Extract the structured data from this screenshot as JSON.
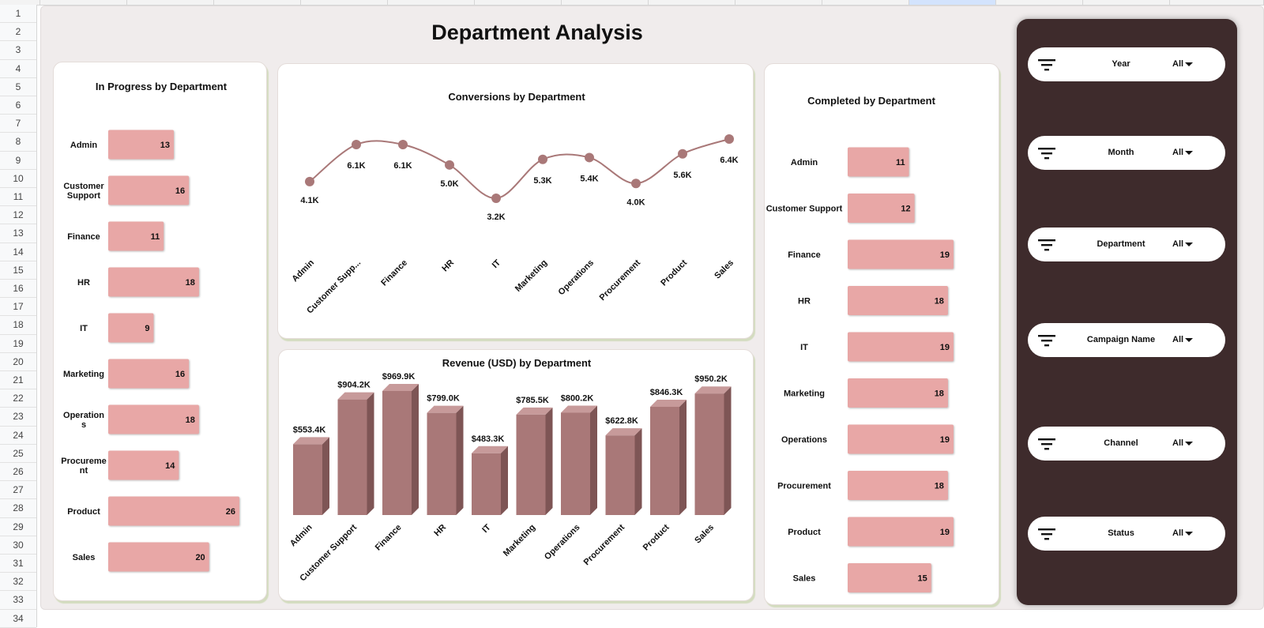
{
  "dashboard": {
    "title": "Department Analysis"
  },
  "sheet": {
    "rows": [
      "1",
      "2",
      "3",
      "4",
      "5",
      "6",
      "7",
      "8",
      "9",
      "10",
      "11",
      "12",
      "13",
      "14",
      "15",
      "16",
      "17",
      "18",
      "19",
      "20",
      "21",
      "22",
      "23",
      "24",
      "25",
      "26",
      "27",
      "28",
      "29",
      "30",
      "31",
      "32",
      "33",
      "34"
    ]
  },
  "filters": [
    {
      "label": "Year",
      "value": "All"
    },
    {
      "label": "Month",
      "value": "All"
    },
    {
      "label": "Department",
      "value": "All"
    },
    {
      "label": "Campaign Name",
      "value": "All"
    },
    {
      "label": "Channel",
      "value": "All"
    },
    {
      "label": "Status",
      "value": "All"
    }
  ],
  "colors": {
    "bar": "#e8a7a6",
    "column_front": "#a97878",
    "column_top": "#c79a9a",
    "column_side": "#7e5555",
    "line": "#a97878",
    "sidebar": "#3e2b2c"
  },
  "chart_data": [
    {
      "id": "in_progress",
      "type": "bar",
      "orientation": "horizontal",
      "title": "In Progress by Department",
      "categories": [
        "Admin",
        "Customer Support",
        "Finance",
        "HR",
        "IT",
        "Marketing",
        "Operations",
        "Procurement",
        "Product",
        "Sales"
      ],
      "values": [
        13,
        16,
        11,
        18,
        9,
        16,
        18,
        14,
        26,
        20
      ],
      "labels": [
        "13",
        "16",
        "11",
        "18",
        "9",
        "16",
        "18",
        "14",
        "26",
        "20"
      ]
    },
    {
      "id": "conversions",
      "type": "line",
      "title": "Conversions by Department",
      "categories": [
        "Admin",
        "Customer Supp...",
        "Finance",
        "HR",
        "IT",
        "Marketing",
        "Operations",
        "Procurement",
        "Product",
        "Sales"
      ],
      "values": [
        4100,
        6100,
        6100,
        5000,
        3200,
        5300,
        5400,
        4000,
        5600,
        6400
      ],
      "labels": [
        "4.1K",
        "6.1K",
        "6.1K",
        "5.0K",
        "3.2K",
        "5.3K",
        "5.4K",
        "4.0K",
        "5.6K",
        "6.4K"
      ]
    },
    {
      "id": "revenue",
      "type": "bar",
      "orientation": "vertical",
      "style": "3d-column",
      "title": "Revenue (USD) by Department",
      "categories": [
        "Admin",
        "Customer Support",
        "Finance",
        "HR",
        "IT",
        "Marketing",
        "Operations",
        "Procurement",
        "Product",
        "Sales"
      ],
      "values": [
        553400,
        904200,
        969900,
        799000,
        483300,
        785500,
        800200,
        622800,
        846300,
        950200
      ],
      "labels": [
        "$553.4K",
        "$904.2K",
        "$969.9K",
        "$799.0K",
        "$483.3K",
        "$785.5K",
        "$800.2K",
        "$622.8K",
        "$846.3K",
        "$950.2K"
      ]
    },
    {
      "id": "completed",
      "type": "bar",
      "orientation": "horizontal",
      "title": "Completed by Department",
      "categories": [
        "Admin",
        "Customer Support",
        "Finance",
        "HR",
        "IT",
        "Marketing",
        "Operations",
        "Procurement",
        "Product",
        "Sales"
      ],
      "values": [
        11,
        12,
        19,
        18,
        19,
        18,
        19,
        18,
        19,
        15
      ],
      "labels": [
        "11",
        "12",
        "19",
        "18",
        "19",
        "18",
        "19",
        "18",
        "19",
        "15"
      ]
    }
  ]
}
